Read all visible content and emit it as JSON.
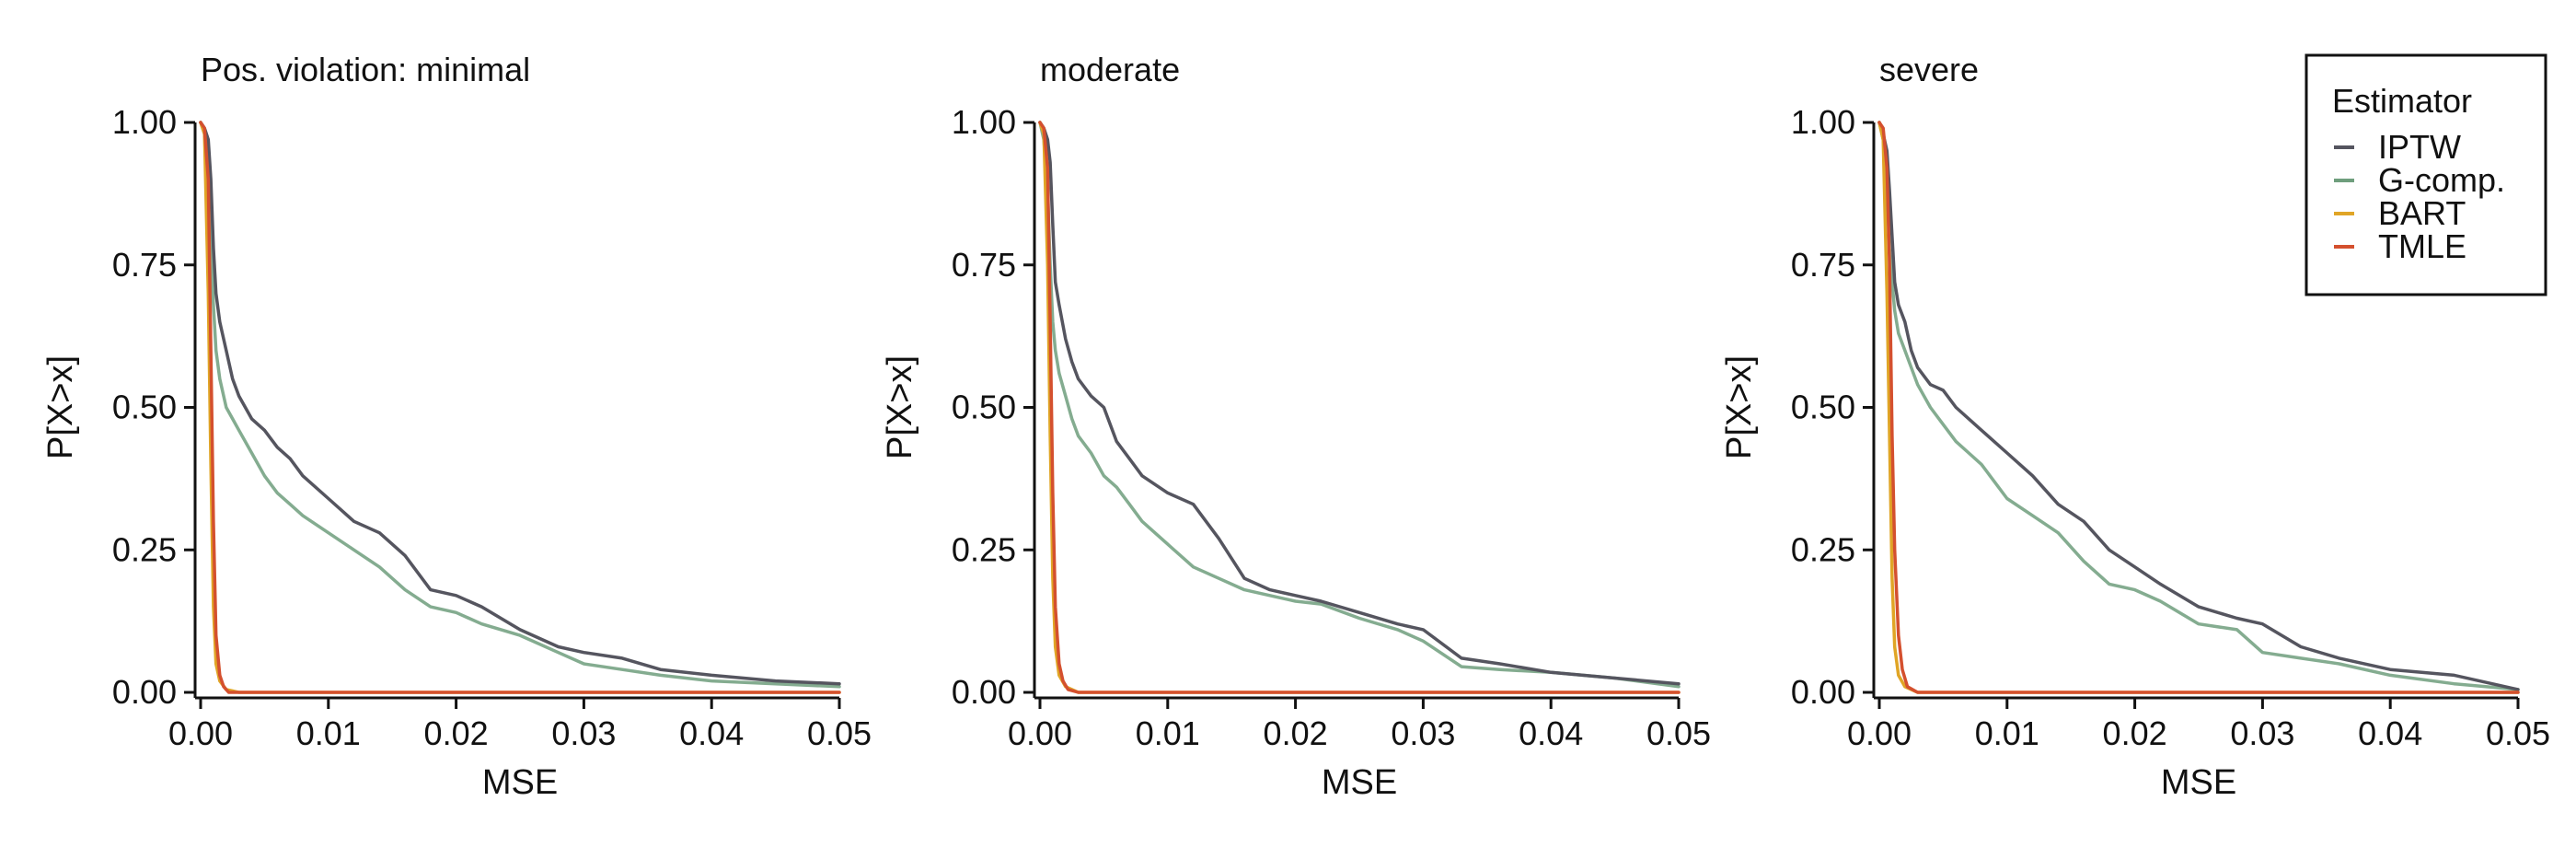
{
  "chart_data": [
    {
      "type": "line",
      "title": "Pos. violation: minimal",
      "xlabel": "MSE",
      "ylabel": "P[X>x]",
      "xlim": [
        0,
        0.05
      ],
      "ylim": [
        0,
        1
      ],
      "xticks": [
        "0.00",
        "0.01",
        "0.02",
        "0.03",
        "0.04",
        "0.05"
      ],
      "yticks": [
        "0.00",
        "0.25",
        "0.50",
        "0.75",
        "1.00"
      ],
      "series": [
        {
          "name": "IPTW",
          "x": [
            0,
            0.0003,
            0.0006,
            0.0008,
            0.001,
            0.0012,
            0.0015,
            0.002,
            0.0025,
            0.003,
            0.004,
            0.005,
            0.006,
            0.007,
            0.008,
            0.01,
            0.012,
            0.014,
            0.016,
            0.018,
            0.02,
            0.022,
            0.025,
            0.028,
            0.03,
            0.033,
            0.036,
            0.04,
            0.045,
            0.05
          ],
          "y": [
            1.0,
            0.99,
            0.97,
            0.9,
            0.78,
            0.7,
            0.65,
            0.6,
            0.55,
            0.52,
            0.48,
            0.46,
            0.43,
            0.41,
            0.38,
            0.34,
            0.3,
            0.28,
            0.24,
            0.18,
            0.17,
            0.15,
            0.11,
            0.08,
            0.07,
            0.06,
            0.04,
            0.03,
            0.02,
            0.015
          ]
        },
        {
          "name": "G-comp.",
          "x": [
            0,
            0.0003,
            0.0006,
            0.0008,
            0.001,
            0.0012,
            0.0015,
            0.002,
            0.0025,
            0.003,
            0.004,
            0.005,
            0.006,
            0.007,
            0.008,
            0.01,
            0.012,
            0.014,
            0.016,
            0.018,
            0.02,
            0.022,
            0.025,
            0.028,
            0.03,
            0.033,
            0.036,
            0.04,
            0.045,
            0.05
          ],
          "y": [
            1.0,
            0.98,
            0.9,
            0.78,
            0.68,
            0.6,
            0.55,
            0.5,
            0.48,
            0.46,
            0.42,
            0.38,
            0.35,
            0.33,
            0.31,
            0.28,
            0.25,
            0.22,
            0.18,
            0.15,
            0.14,
            0.12,
            0.1,
            0.07,
            0.05,
            0.04,
            0.03,
            0.02,
            0.015,
            0.01
          ]
        },
        {
          "name": "BART",
          "x": [
            0,
            0.0003,
            0.0006,
            0.0008,
            0.001,
            0.0012,
            0.0015,
            0.002,
            0.003,
            0.05
          ],
          "y": [
            1.0,
            0.98,
            0.7,
            0.4,
            0.15,
            0.05,
            0.02,
            0.005,
            0.0,
            0.0
          ]
        },
        {
          "name": "TMLE",
          "x": [
            0,
            0.0003,
            0.0006,
            0.0008,
            0.001,
            0.0012,
            0.0015,
            0.0018,
            0.0022,
            0.003,
            0.05
          ],
          "y": [
            1.0,
            0.99,
            0.9,
            0.6,
            0.3,
            0.1,
            0.03,
            0.01,
            0.0,
            0.0,
            0.0
          ]
        }
      ]
    },
    {
      "type": "line",
      "title": "moderate",
      "xlabel": "MSE",
      "ylabel": "P[X>x]",
      "xlim": [
        0,
        0.05
      ],
      "ylim": [
        0,
        1
      ],
      "xticks": [
        "0.00",
        "0.01",
        "0.02",
        "0.03",
        "0.04",
        "0.05"
      ],
      "yticks": [
        "0.00",
        "0.25",
        "0.50",
        "0.75",
        "1.00"
      ],
      "series": [
        {
          "name": "IPTW",
          "x": [
            0,
            0.0003,
            0.0006,
            0.0008,
            0.001,
            0.0012,
            0.0015,
            0.002,
            0.0025,
            0.003,
            0.004,
            0.005,
            0.006,
            0.007,
            0.008,
            0.01,
            0.012,
            0.014,
            0.016,
            0.018,
            0.02,
            0.022,
            0.025,
            0.028,
            0.03,
            0.033,
            0.036,
            0.04,
            0.045,
            0.05
          ],
          "y": [
            1.0,
            0.99,
            0.97,
            0.93,
            0.82,
            0.72,
            0.68,
            0.62,
            0.58,
            0.55,
            0.52,
            0.5,
            0.44,
            0.41,
            0.38,
            0.35,
            0.33,
            0.27,
            0.2,
            0.18,
            0.17,
            0.16,
            0.14,
            0.12,
            0.11,
            0.06,
            0.05,
            0.035,
            0.025,
            0.015
          ]
        },
        {
          "name": "G-comp.",
          "x": [
            0,
            0.0003,
            0.0006,
            0.0008,
            0.001,
            0.0012,
            0.0015,
            0.002,
            0.0025,
            0.003,
            0.004,
            0.005,
            0.006,
            0.007,
            0.008,
            0.01,
            0.012,
            0.014,
            0.016,
            0.018,
            0.02,
            0.022,
            0.025,
            0.028,
            0.03,
            0.033,
            0.036,
            0.04,
            0.045,
            0.05
          ],
          "y": [
            1.0,
            0.97,
            0.88,
            0.75,
            0.65,
            0.6,
            0.56,
            0.52,
            0.48,
            0.45,
            0.42,
            0.38,
            0.36,
            0.33,
            0.3,
            0.26,
            0.22,
            0.2,
            0.18,
            0.17,
            0.16,
            0.155,
            0.13,
            0.11,
            0.09,
            0.045,
            0.04,
            0.035,
            0.025,
            0.01
          ]
        },
        {
          "name": "BART",
          "x": [
            0,
            0.0003,
            0.0006,
            0.0008,
            0.001,
            0.0012,
            0.0015,
            0.002,
            0.003,
            0.05
          ],
          "y": [
            1.0,
            0.98,
            0.75,
            0.45,
            0.2,
            0.08,
            0.03,
            0.01,
            0.0,
            0.0
          ]
        },
        {
          "name": "TMLE",
          "x": [
            0,
            0.0003,
            0.0006,
            0.0008,
            0.001,
            0.0012,
            0.0015,
            0.0018,
            0.0022,
            0.003,
            0.05
          ],
          "y": [
            1.0,
            0.99,
            0.92,
            0.65,
            0.35,
            0.15,
            0.05,
            0.02,
            0.005,
            0.0,
            0.0
          ]
        }
      ]
    },
    {
      "type": "line",
      "title": "severe",
      "xlabel": "MSE",
      "ylabel": "P[X>x]",
      "xlim": [
        0,
        0.05
      ],
      "ylim": [
        0,
        1
      ],
      "xticks": [
        "0.00",
        "0.01",
        "0.02",
        "0.03",
        "0.04",
        "0.05"
      ],
      "yticks": [
        "0.00",
        "0.25",
        "0.50",
        "0.75",
        "1.00"
      ],
      "series": [
        {
          "name": "IPTW",
          "x": [
            0,
            0.0003,
            0.0006,
            0.0008,
            0.001,
            0.0012,
            0.0015,
            0.002,
            0.0025,
            0.003,
            0.004,
            0.005,
            0.006,
            0.007,
            0.008,
            0.01,
            0.012,
            0.014,
            0.016,
            0.018,
            0.02,
            0.022,
            0.025,
            0.028,
            0.03,
            0.033,
            0.036,
            0.04,
            0.045,
            0.05
          ],
          "y": [
            1.0,
            0.98,
            0.95,
            0.88,
            0.8,
            0.72,
            0.68,
            0.65,
            0.6,
            0.57,
            0.54,
            0.53,
            0.5,
            0.48,
            0.46,
            0.42,
            0.38,
            0.33,
            0.3,
            0.25,
            0.22,
            0.19,
            0.15,
            0.13,
            0.12,
            0.08,
            0.06,
            0.04,
            0.03,
            0.005
          ]
        },
        {
          "name": "G-comp.",
          "x": [
            0,
            0.0003,
            0.0006,
            0.0008,
            0.001,
            0.0012,
            0.0015,
            0.002,
            0.0025,
            0.003,
            0.004,
            0.005,
            0.006,
            0.007,
            0.008,
            0.01,
            0.012,
            0.014,
            0.016,
            0.018,
            0.02,
            0.022,
            0.025,
            0.028,
            0.03,
            0.033,
            0.036,
            0.04,
            0.045,
            0.05
          ],
          "y": [
            1.0,
            0.97,
            0.88,
            0.78,
            0.72,
            0.67,
            0.63,
            0.6,
            0.57,
            0.54,
            0.5,
            0.47,
            0.44,
            0.42,
            0.4,
            0.34,
            0.31,
            0.28,
            0.23,
            0.19,
            0.18,
            0.16,
            0.12,
            0.11,
            0.07,
            0.06,
            0.05,
            0.03,
            0.015,
            0.005
          ]
        },
        {
          "name": "BART",
          "x": [
            0,
            0.0003,
            0.0006,
            0.0008,
            0.001,
            0.0012,
            0.0015,
            0.002,
            0.003,
            0.05
          ],
          "y": [
            1.0,
            0.97,
            0.7,
            0.45,
            0.2,
            0.08,
            0.03,
            0.01,
            0.0,
            0.0
          ]
        },
        {
          "name": "TMLE",
          "x": [
            0,
            0.0003,
            0.0006,
            0.0008,
            0.001,
            0.0012,
            0.0015,
            0.0018,
            0.0022,
            0.003,
            0.05
          ],
          "y": [
            1.0,
            0.99,
            0.92,
            0.75,
            0.45,
            0.25,
            0.1,
            0.04,
            0.01,
            0.0,
            0.0
          ]
        }
      ]
    }
  ],
  "legend": {
    "title": "Estimator",
    "position": "top-right",
    "items": [
      {
        "label": "IPTW",
        "color": "#55555f"
      },
      {
        "label": "G-comp.",
        "color": "#6f9e7d"
      },
      {
        "label": "BART",
        "color": "#e0a526"
      },
      {
        "label": "TMLE",
        "color": "#d4502e"
      }
    ]
  }
}
